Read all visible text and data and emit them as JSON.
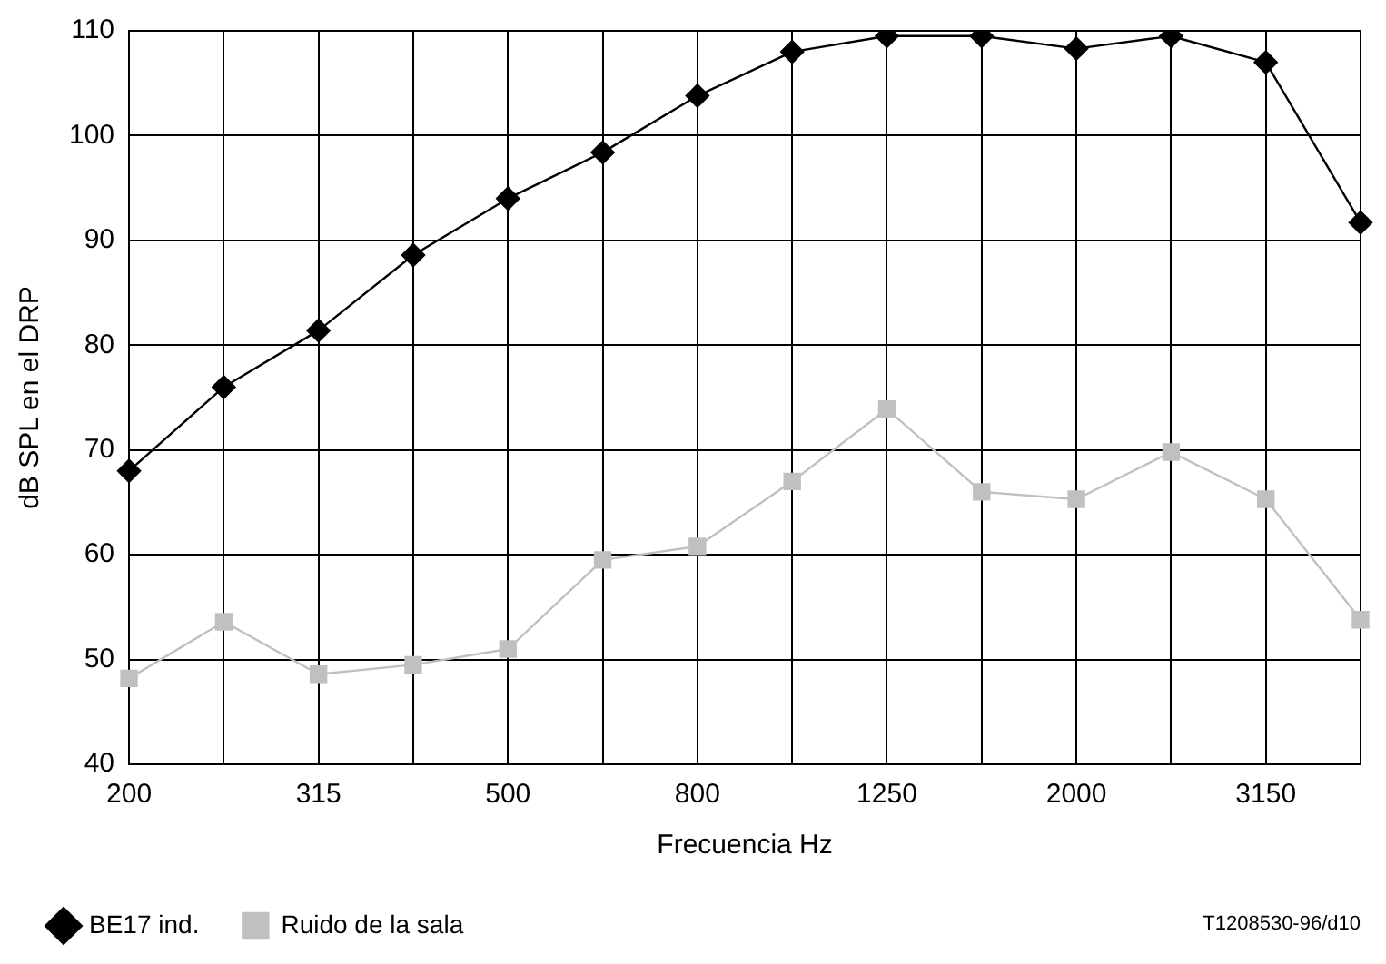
{
  "chart_data": {
    "type": "line",
    "xlabel": "Frecuencia Hz",
    "ylabel": "dB SPL en el DRP",
    "categories": [
      "200",
      null,
      "315",
      null,
      "500",
      null,
      "800",
      null,
      "1250",
      null,
      "2000",
      null,
      "3150",
      null
    ],
    "series": [
      {
        "name": "BE17 ind.",
        "color": "#000000",
        "marker": "diamond",
        "values": [
          68,
          76,
          81.4,
          88.6,
          94,
          98.4,
          103.8,
          108,
          109.5,
          109.5,
          108.3,
          109.5,
          107,
          91.7
        ]
      },
      {
        "name": "Ruido de la sala",
        "color": "#c0c0c0",
        "marker": "square",
        "values": [
          48.2,
          53.6,
          48.6,
          49.5,
          51,
          59.5,
          60.8,
          67,
          73.9,
          66,
          65.3,
          69.8,
          65.3,
          53.8
        ]
      }
    ],
    "ylim": [
      40,
      110
    ],
    "yticks": [
      40,
      50,
      60,
      70,
      80,
      90,
      100,
      110
    ],
    "grid": true,
    "legend": "bottom left",
    "annotations": [
      "T1208530-96/d10"
    ]
  }
}
